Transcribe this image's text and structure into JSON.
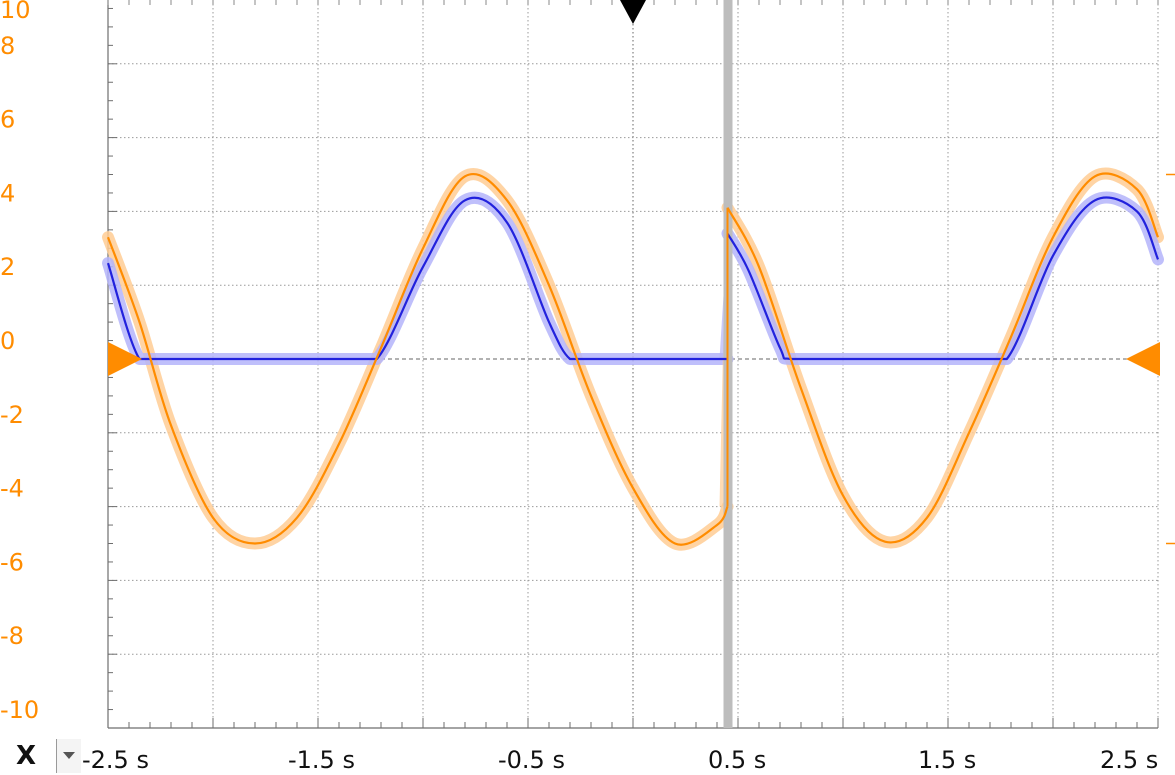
{
  "chart_data": {
    "type": "line",
    "title": "",
    "xlabel": "",
    "ylabel": "",
    "xlim": [
      -2.5,
      2.5
    ],
    "ylim": [
      -10,
      10
    ],
    "grid": true,
    "x_ticks": [
      "-2.5 s",
      "-1.5 s",
      "-0.5 s",
      "0.5 s",
      "1.5 s",
      "2.5 s"
    ],
    "y_ticks": [
      "10",
      "8",
      "6",
      "4",
      "2",
      "0",
      "-2",
      "-4",
      "-6",
      "-8",
      "-10"
    ],
    "y_tick_values": [
      10,
      8,
      6,
      4,
      2,
      0,
      -2,
      -4,
      -6,
      -8,
      -10
    ],
    "series": [
      {
        "color": "#ff8c00",
        "envelope_color": "#ffcc94",
        "segments": [
          {
            "x": [
              -2.5,
              -2.35,
              -2.2,
              -2.0,
              -1.8,
              -1.6,
              -1.4,
              -1.2,
              -1.0,
              -0.8,
              -0.6,
              -0.4,
              -0.2,
              0.0,
              0.2,
              0.4,
              0.45
            ],
            "y": [
              3.3,
              1.0,
              -1.8,
              -4.3,
              -5.0,
              -4.3,
              -2.3,
              0.3,
              3.0,
              4.95,
              4.3,
              2.0,
              -1.0,
              -3.5,
              -5.0,
              -4.5,
              -4.0
            ]
          },
          {
            "x": [
              0.45,
              0.6,
              0.8,
              1.0,
              1.2,
              1.4,
              1.6,
              1.8,
              2.0,
              2.2,
              2.4,
              2.5
            ],
            "y": [
              4.1,
              2.5,
              -0.8,
              -3.7,
              -4.95,
              -4.3,
              -2.0,
              0.6,
              3.3,
              4.95,
              4.6,
              3.3
            ]
          }
        ]
      },
      {
        "color": "#2222dd",
        "envelope_color": "#b4b4fa",
        "segments": [
          {
            "x": [
              -2.5,
              -2.35,
              -2.2,
              -2.0,
              -1.8,
              -1.6,
              -1.4,
              -1.22,
              -1.0,
              -0.8,
              -0.6,
              -0.4,
              -0.3,
              -0.2,
              0.0,
              0.2,
              0.45
            ],
            "y": [
              2.6,
              0.0,
              0.0,
              0.0,
              0.0,
              0.0,
              0.0,
              0.0,
              2.5,
              4.3,
              3.7,
              1.0,
              0.0,
              0.0,
              0.0,
              0.0,
              0.0
            ]
          },
          {
            "x": [
              0.45,
              0.55,
              0.7,
              0.75,
              1.0,
              1.2,
              1.4,
              1.6,
              1.78,
              2.0,
              2.2,
              2.4,
              2.5
            ],
            "y": [
              3.4,
              2.4,
              0.3,
              0.0,
              0.0,
              0.0,
              0.0,
              0.0,
              0.0,
              2.8,
              4.3,
              4.0,
              2.7
            ]
          }
        ]
      }
    ],
    "cursor_x": 0.45,
    "trigger_x": 0.0,
    "zero_level_markers": [
      0,
      0
    ]
  },
  "axis_selector": {
    "label": "X",
    "options": [
      "X"
    ]
  }
}
